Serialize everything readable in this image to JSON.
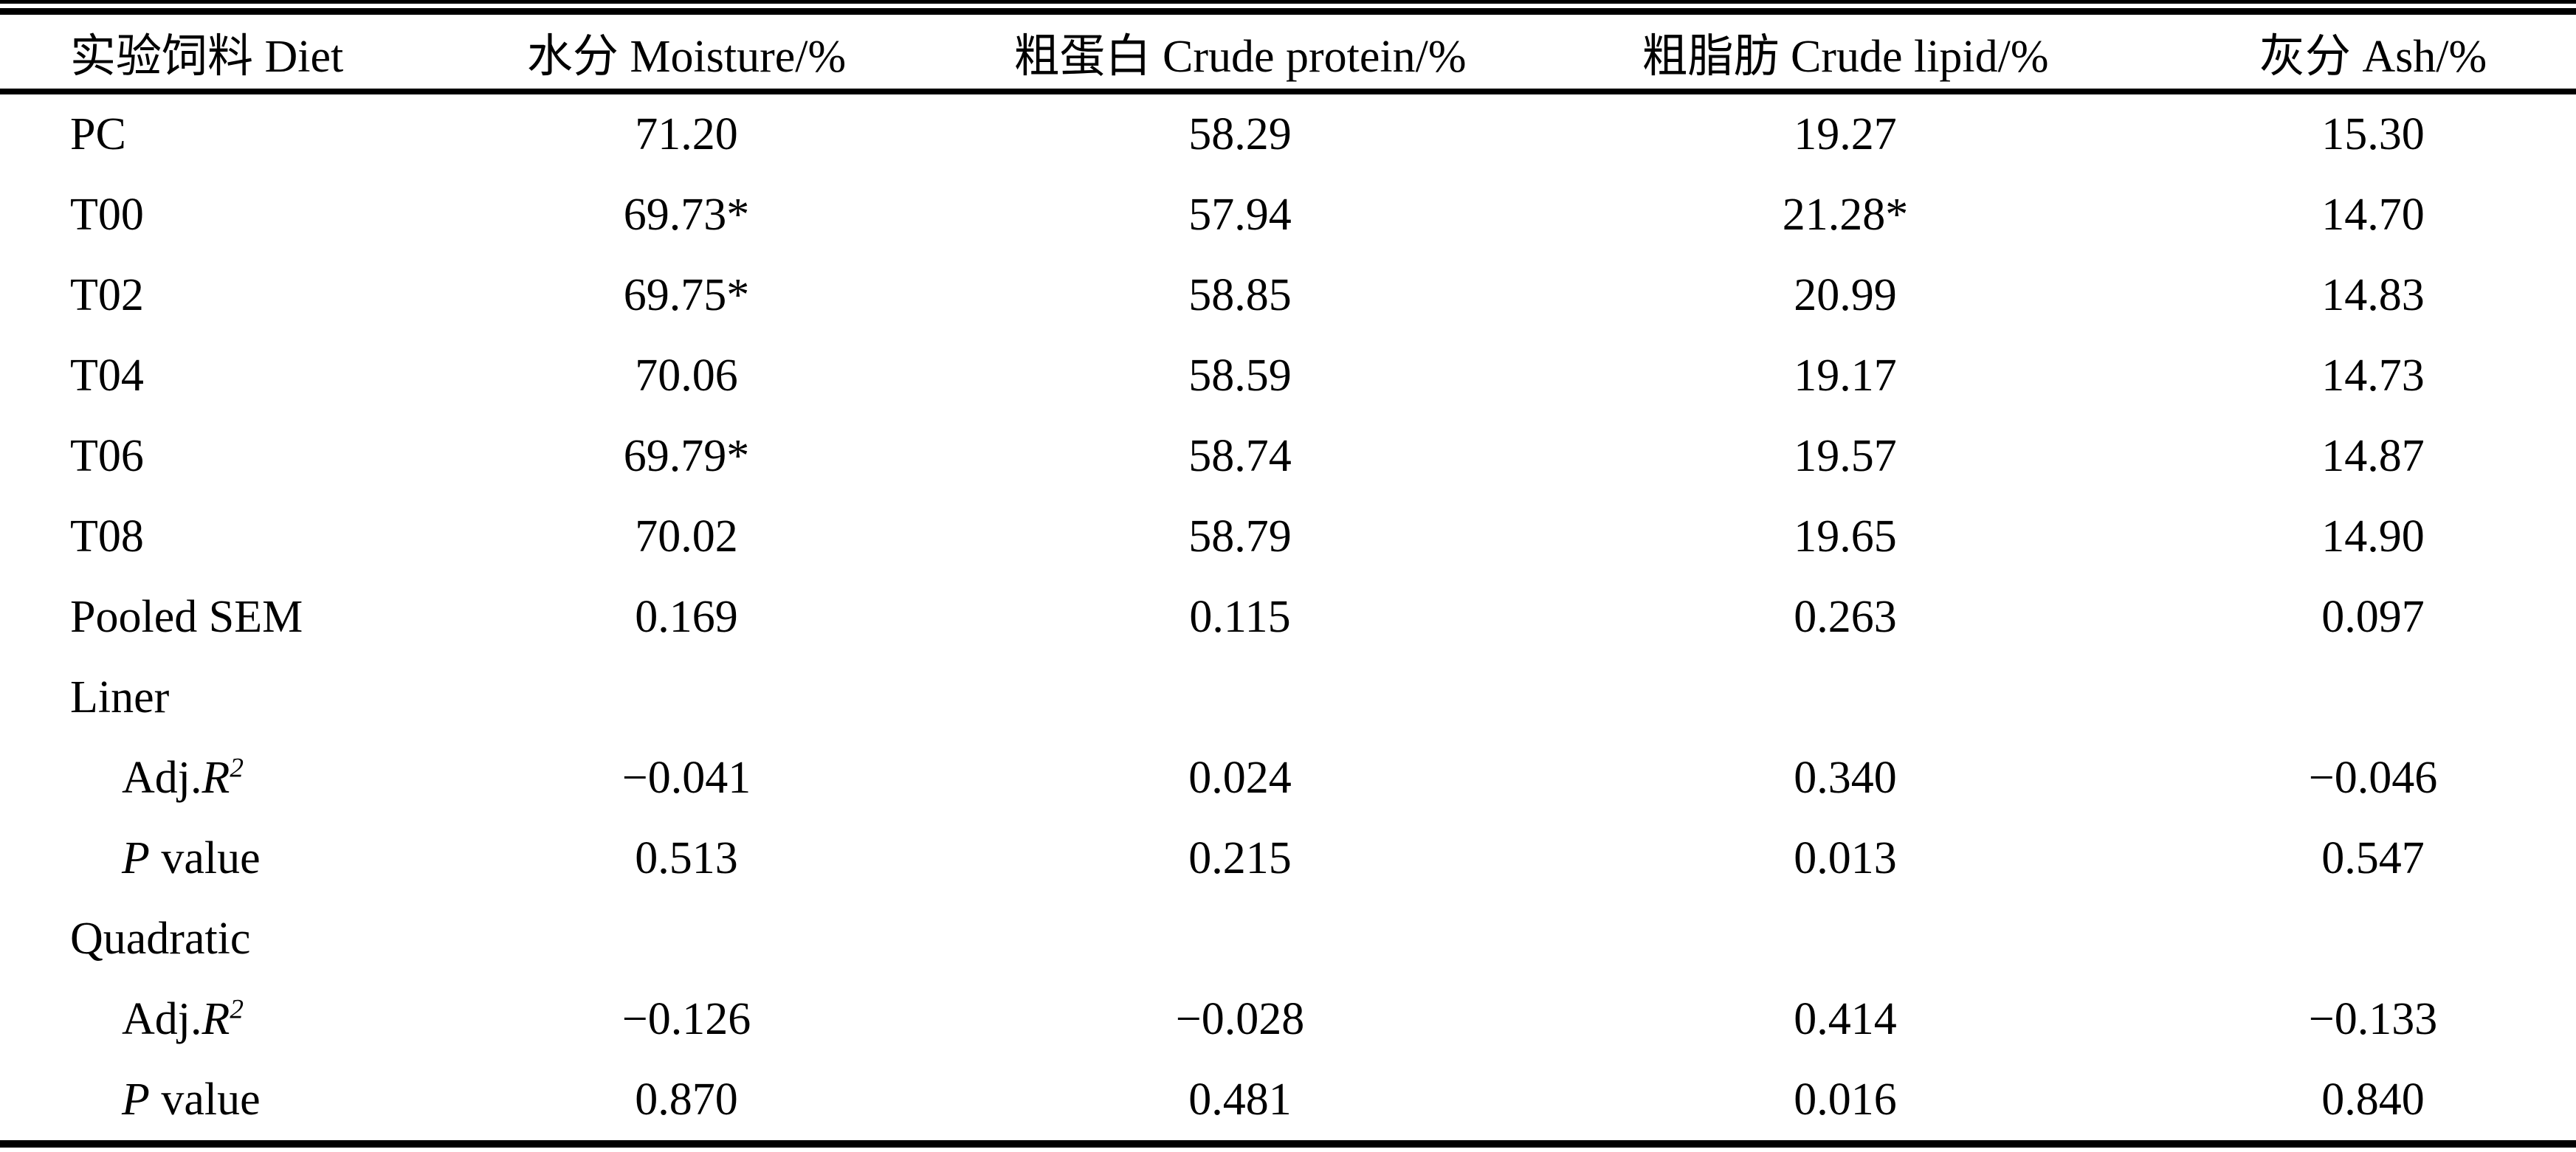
{
  "table": {
    "columns": [
      {
        "label": "实验饲料 Diet"
      },
      {
        "label": "水分 Moisture/%"
      },
      {
        "label": "粗蛋白 Crude protein/%"
      },
      {
        "label": "粗脂肪 Crude lipid/%"
      },
      {
        "label": "灰分 Ash/%"
      }
    ],
    "rows": [
      {
        "label": {
          "pre": "PC"
        },
        "indent": false,
        "values": [
          "71.20",
          "58.29",
          "19.27",
          "15.30"
        ]
      },
      {
        "label": {
          "pre": "T00"
        },
        "indent": false,
        "values": [
          "69.73*",
          "57.94",
          "21.28*",
          "14.70"
        ]
      },
      {
        "label": {
          "pre": "T02"
        },
        "indent": false,
        "values": [
          "69.75*",
          "58.85",
          "20.99",
          "14.83"
        ]
      },
      {
        "label": {
          "pre": "T04"
        },
        "indent": false,
        "values": [
          "70.06",
          "58.59",
          "19.17",
          "14.73"
        ]
      },
      {
        "label": {
          "pre": "T06"
        },
        "indent": false,
        "values": [
          "69.79*",
          "58.74",
          "19.57",
          "14.87"
        ]
      },
      {
        "label": {
          "pre": "T08"
        },
        "indent": false,
        "values": [
          "70.02",
          "58.79",
          "19.65",
          "14.90"
        ]
      },
      {
        "label": {
          "pre": "Pooled SEM"
        },
        "indent": false,
        "values": [
          "0.169",
          "0.115",
          "0.263",
          "0.097"
        ]
      },
      {
        "label": {
          "pre": "Liner"
        },
        "indent": false,
        "values": []
      },
      {
        "label": {
          "pre": "Adj.",
          "italic": "R",
          "sup": "2"
        },
        "indent": true,
        "values": [
          "−0.041",
          "0.024",
          "0.340",
          "−0.046"
        ]
      },
      {
        "label": {
          "italic": "P",
          "post": " value"
        },
        "indent": true,
        "values": [
          "0.513",
          "0.215",
          "0.013",
          "0.547"
        ]
      },
      {
        "label": {
          "pre": "Quadratic"
        },
        "indent": false,
        "values": []
      },
      {
        "label": {
          "pre": "Adj.",
          "italic": "R",
          "sup": "2"
        },
        "indent": true,
        "values": [
          "−0.126",
          "−0.028",
          "0.414",
          "−0.133"
        ]
      },
      {
        "label": {
          "italic": "P",
          "post": " value"
        },
        "indent": true,
        "values": [
          "0.870",
          "0.481",
          "0.016",
          "0.840"
        ]
      }
    ]
  }
}
